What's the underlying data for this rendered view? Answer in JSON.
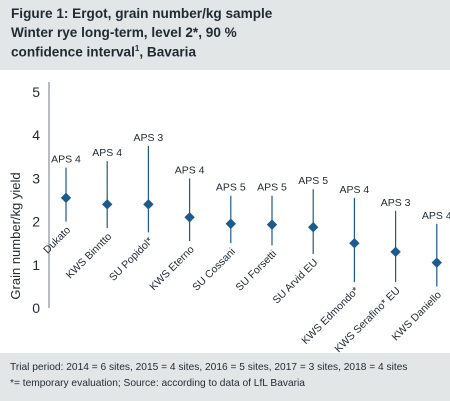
{
  "title": {
    "line1": "Figure 1: Ergot, grain number/kg sample",
    "line2": "Winter rye long-term, level 2*, 90 %",
    "line3_pre": "confidence interval",
    "line3_sup": "1",
    "line3_post": ", Bavaria"
  },
  "footnote": {
    "line1": "Trial period: 2014 = 6 sites, 2015 = 4 sites, 2016 = 5 sites, 2017 = 3 sites, 2018 = 4 sites",
    "line2": "*= temporary evaluation; Source: according to data of LfL Bavaria"
  },
  "colors": {
    "accent": "#1b5c8c",
    "panel": "#e3e6e7",
    "text": "#1f2a33"
  },
  "chart_data": {
    "type": "scatter",
    "subtype": "point-with-interval",
    "ylabel": "Grain number/kg yield",
    "ylim": [
      0,
      5
    ],
    "yticks": [
      "0",
      "1",
      "2",
      "3",
      "4",
      "5"
    ],
    "grid": false,
    "categories": [
      "Dukato",
      "KWS Binntto",
      "SU Popidol*",
      "KWS Eterno",
      "SU Cossani",
      "SU Forsetti",
      "SU Arvid EU",
      "KWS Edmondo*",
      "KWS Serafino* EU",
      "KWS Daniello"
    ],
    "aps": [
      "APS 4",
      "APS 4",
      "APS 3",
      "APS 4",
      "APS 5",
      "APS 5",
      "APS 5",
      "APS 4",
      "APS 3",
      "APS 4"
    ],
    "values": [
      2.55,
      2.4,
      2.4,
      2.1,
      1.95,
      1.93,
      1.87,
      1.5,
      1.3,
      1.05
    ],
    "upper": [
      3.25,
      3.4,
      3.75,
      3.0,
      2.6,
      2.6,
      2.75,
      2.55,
      2.25,
      1.95
    ],
    "lower": [
      2.0,
      1.85,
      1.75,
      1.55,
      1.5,
      1.45,
      1.25,
      0.6,
      0.6,
      0.5
    ]
  }
}
